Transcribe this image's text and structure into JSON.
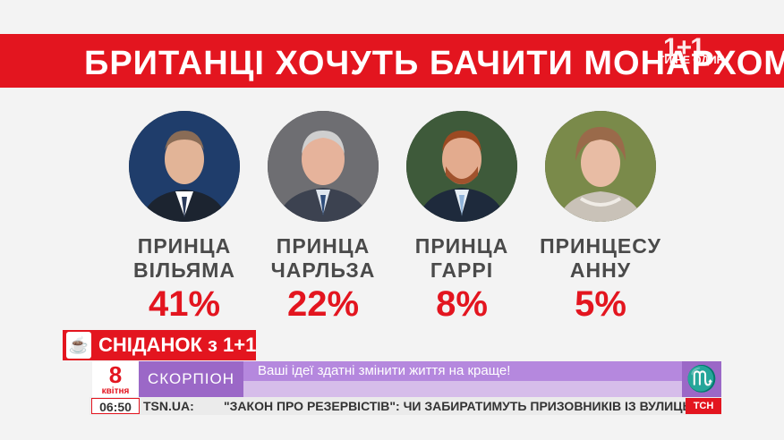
{
  "title": "БРИТАНЦІ ХОЧУТЬ БАЧИТИ МОНАРХОМ:",
  "logo": {
    "mark": "1+1",
    "tagline": "ТИ НЕ ОДИН"
  },
  "candidates": [
    {
      "name_line1": "ПРИНЦА",
      "name_line2": "ВІЛЬЯМА",
      "percent": "41%",
      "value": 41
    },
    {
      "name_line1": "ПРИНЦА",
      "name_line2": "ЧАРЛЬЗА",
      "percent": "22%",
      "value": 22
    },
    {
      "name_line1": "ПРИНЦА",
      "name_line2": "ГАРРІ",
      "percent": "8%",
      "value": 8
    },
    {
      "name_line1": "ПРИНЦЕСУ",
      "name_line2": "АННУ",
      "percent": "5%",
      "value": 5
    }
  ],
  "show": {
    "name": "СНІДАНОК з 1+1"
  },
  "date": {
    "day": "8",
    "month": "квітня"
  },
  "horoscope": {
    "sign": "СКОРПІОН",
    "text": "Ваші ідеї здатні змінити життя на краще!",
    "symbol": "♏"
  },
  "ticker": {
    "time": "06:50",
    "site": "TSN.UA:",
    "headline": "\"ЗАКОН ПРО РЕЗЕРВІСТІВ\":  ЧИ ЗАБИРАТИМУТЬ ПРИЗОВНИКІВ ІЗ ВУЛИЦЬ ТА",
    "channel": "ТСН"
  },
  "colors": {
    "accent": "#e3151f",
    "purple": "#9b68c7",
    "text_gray": "#4a4a4a"
  }
}
